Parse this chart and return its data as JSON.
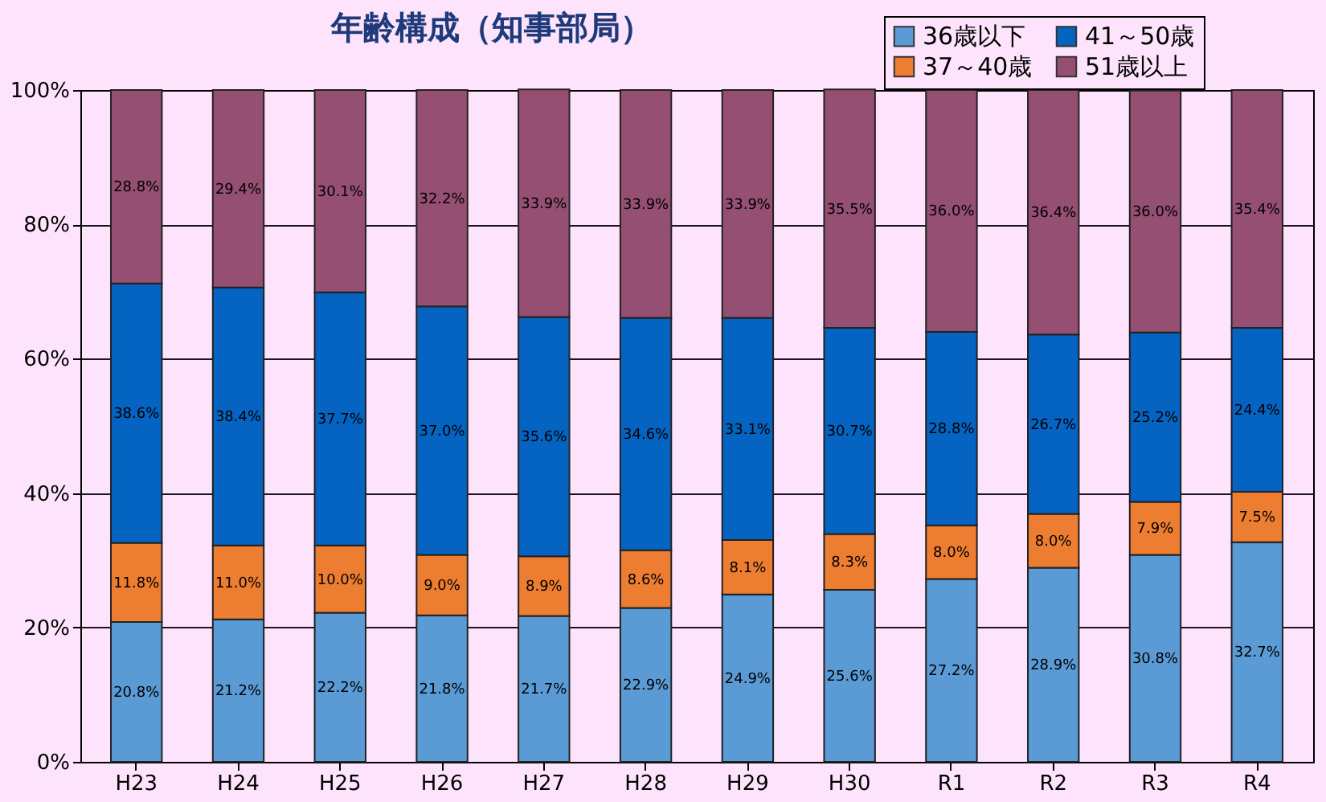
{
  "chart_data": {
    "type": "bar",
    "stacked": true,
    "title": "年齢構成（知事部局）",
    "categories": [
      "H23",
      "H24",
      "H25",
      "H26",
      "H27",
      "H28",
      "H29",
      "H30",
      "R1",
      "R2",
      "R3",
      "R4"
    ],
    "series": [
      {
        "name": "36歳以下",
        "color": "#5b9bd5",
        "values": [
          20.8,
          21.2,
          22.2,
          21.8,
          21.7,
          22.9,
          24.9,
          25.6,
          27.2,
          28.9,
          30.8,
          32.7
        ]
      },
      {
        "name": "37～40歳",
        "color": "#ed7d31",
        "values": [
          11.8,
          11.0,
          10.0,
          9.0,
          8.9,
          8.6,
          8.1,
          8.3,
          8.0,
          8.0,
          7.9,
          7.5
        ]
      },
      {
        "name": "41～50歳",
        "color": "#0563c1",
        "values": [
          38.6,
          38.4,
          37.7,
          37.0,
          35.6,
          34.6,
          33.1,
          30.7,
          28.8,
          26.7,
          25.2,
          24.4
        ]
      },
      {
        "name": "51歳以上",
        "color": "#954f72",
        "values": [
          28.8,
          29.4,
          30.1,
          32.2,
          33.9,
          33.9,
          33.9,
          35.5,
          36.0,
          36.4,
          36.0,
          35.4
        ]
      }
    ],
    "value_labels": [
      [
        "20.8%",
        "21.2%",
        "22.2%",
        "21.8%",
        "21.7%",
        "22.9%",
        "24.9%",
        "25.6%",
        "27.2%",
        "28.9%",
        "30.8%",
        "32.7%"
      ],
      [
        "11.8%",
        "11.0%",
        "10.0%",
        "9.0%",
        "8.9%",
        "8.6%",
        "8.1%",
        "8.3%",
        "8.0%",
        "8.0%",
        "7.9%",
        "7.5%"
      ],
      [
        "38.6%",
        "38.4%",
        "37.7%",
        "37.0%",
        "35.6%",
        "34.6%",
        "33.1%",
        "30.7%",
        "28.8%",
        "26.7%",
        "25.2%",
        "24.4%"
      ],
      [
        "28.8%",
        "29.4%",
        "30.1%",
        "32.2%",
        "33.9%",
        "33.9%",
        "33.9%",
        "35.5%",
        "36.0%",
        "36.4%",
        "36.0%",
        "35.4%"
      ]
    ],
    "ylim": [
      0,
      100
    ],
    "yticks": [
      {
        "value": 0,
        "label": "0%"
      },
      {
        "value": 20,
        "label": "20%"
      },
      {
        "value": 40,
        "label": "40%"
      },
      {
        "value": 60,
        "label": "60%"
      },
      {
        "value": 80,
        "label": "80%"
      },
      {
        "value": 100,
        "label": "100%"
      }
    ],
    "grid": "y",
    "legend": "top right"
  }
}
